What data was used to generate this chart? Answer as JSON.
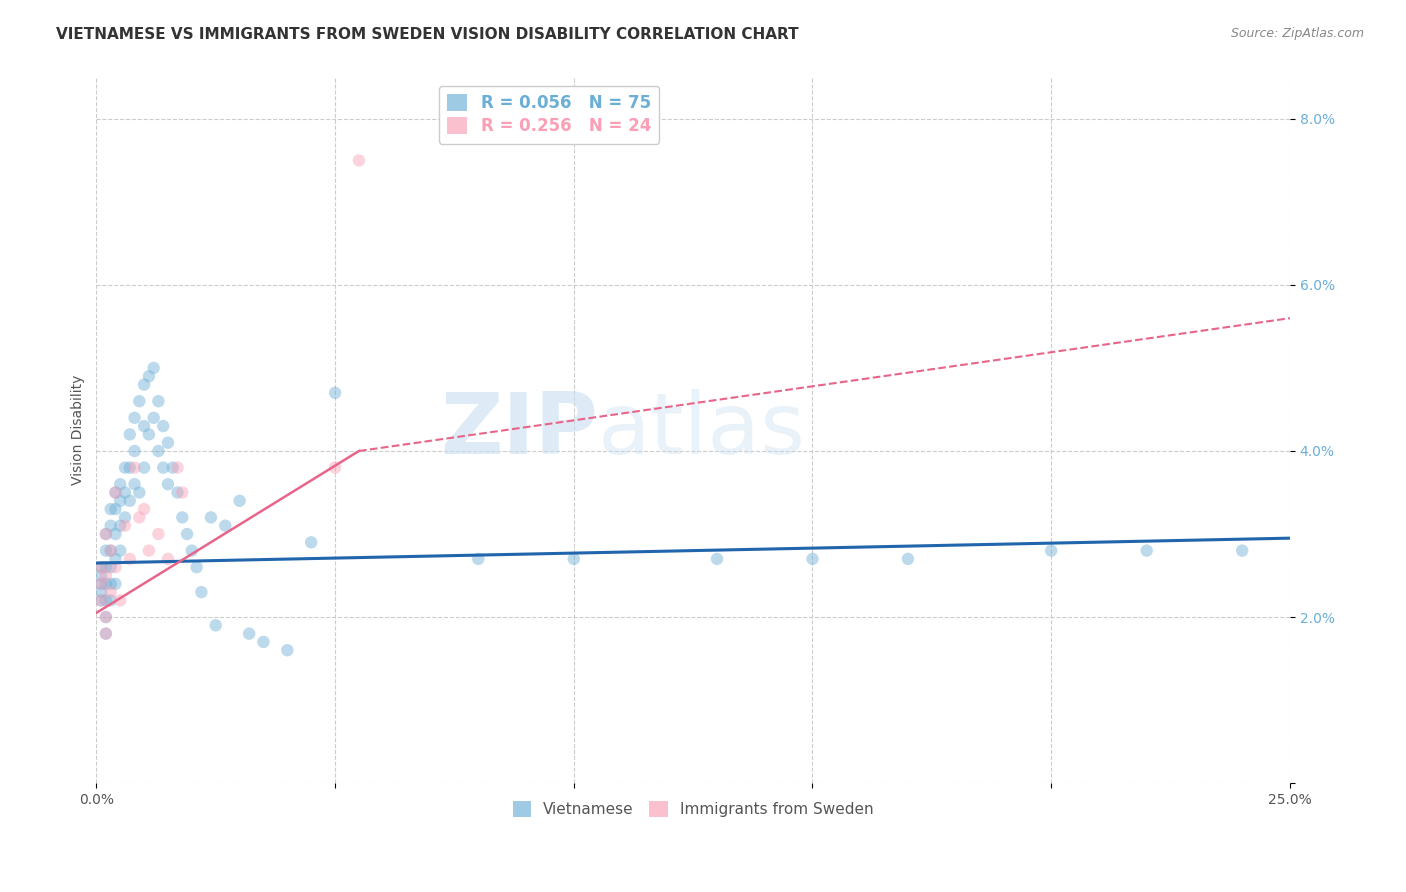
{
  "title": "VIETNAMESE VS IMMIGRANTS FROM SWEDEN VISION DISABILITY CORRELATION CHART",
  "source": "Source: ZipAtlas.com",
  "ylabel": "Vision Disability",
  "xlabel": "",
  "xlim": [
    0.0,
    0.25
  ],
  "ylim": [
    0.0,
    0.085
  ],
  "xticks": [
    0.0,
    0.05,
    0.1,
    0.15,
    0.2,
    0.25
  ],
  "yticks": [
    0.0,
    0.02,
    0.04,
    0.06,
    0.08
  ],
  "ytick_labels": [
    "",
    "2.0%",
    "4.0%",
    "6.0%",
    "8.0%"
  ],
  "xtick_labels": [
    "0.0%",
    "",
    "",
    "",
    "",
    "25.0%"
  ],
  "watermark_part1": "ZIP",
  "watermark_part2": "atlas",
  "series": [
    {
      "name": "Vietnamese",
      "color": "#6baed6",
      "R": 0.056,
      "N": 75,
      "x": [
        0.001,
        0.001,
        0.001,
        0.001,
        0.001,
        0.002,
        0.002,
        0.002,
        0.002,
        0.002,
        0.002,
        0.002,
        0.003,
        0.003,
        0.003,
        0.003,
        0.003,
        0.003,
        0.004,
        0.004,
        0.004,
        0.004,
        0.004,
        0.005,
        0.005,
        0.005,
        0.005,
        0.006,
        0.006,
        0.006,
        0.007,
        0.007,
        0.007,
        0.008,
        0.008,
        0.008,
        0.009,
        0.009,
        0.01,
        0.01,
        0.01,
        0.011,
        0.011,
        0.012,
        0.012,
        0.013,
        0.013,
        0.014,
        0.014,
        0.015,
        0.015,
        0.016,
        0.017,
        0.018,
        0.019,
        0.02,
        0.021,
        0.022,
        0.024,
        0.025,
        0.027,
        0.03,
        0.032,
        0.035,
        0.04,
        0.045,
        0.05,
        0.08,
        0.1,
        0.13,
        0.15,
        0.17,
        0.2,
        0.22,
        0.24
      ],
      "y": [
        0.026,
        0.025,
        0.024,
        0.023,
        0.022,
        0.03,
        0.028,
        0.026,
        0.024,
        0.022,
        0.02,
        0.018,
        0.033,
        0.031,
        0.028,
        0.026,
        0.024,
        0.022,
        0.035,
        0.033,
        0.03,
        0.027,
        0.024,
        0.036,
        0.034,
        0.031,
        0.028,
        0.038,
        0.035,
        0.032,
        0.042,
        0.038,
        0.034,
        0.044,
        0.04,
        0.036,
        0.046,
        0.035,
        0.048,
        0.043,
        0.038,
        0.049,
        0.042,
        0.05,
        0.044,
        0.046,
        0.04,
        0.043,
        0.038,
        0.041,
        0.036,
        0.038,
        0.035,
        0.032,
        0.03,
        0.028,
        0.026,
        0.023,
        0.032,
        0.019,
        0.031,
        0.034,
        0.018,
        0.017,
        0.016,
        0.029,
        0.047,
        0.027,
        0.027,
        0.027,
        0.027,
        0.027,
        0.028,
        0.028,
        0.028
      ]
    },
    {
      "name": "Immigrants from Sweden",
      "color": "#fa9fb5",
      "R": 0.256,
      "N": 24,
      "x": [
        0.001,
        0.001,
        0.001,
        0.002,
        0.002,
        0.002,
        0.003,
        0.003,
        0.004,
        0.004,
        0.005,
        0.006,
        0.007,
        0.008,
        0.009,
        0.01,
        0.011,
        0.013,
        0.015,
        0.017,
        0.018,
        0.05,
        0.055,
        0.002
      ],
      "y": [
        0.026,
        0.024,
        0.022,
        0.03,
        0.025,
        0.02,
        0.028,
        0.023,
        0.035,
        0.026,
        0.022,
        0.031,
        0.027,
        0.038,
        0.032,
        0.033,
        0.028,
        0.03,
        0.027,
        0.038,
        0.035,
        0.038,
        0.075,
        0.018
      ]
    }
  ],
  "trend_blue": {
    "color": "#2166ac",
    "x_start": 0.0,
    "x_end": 0.25,
    "y_start": 0.0265,
    "y_end": 0.0295,
    "linestyle": "solid",
    "linewidth": 2.2
  },
  "trend_pink_solid": {
    "color": "#e8658a",
    "x_start": 0.0,
    "x_end": 0.055,
    "y_start": 0.0205,
    "y_end": 0.04,
    "linestyle": "solid",
    "linewidth": 1.8
  },
  "trend_pink_dashed": {
    "color": "#e8658a",
    "x_start": 0.055,
    "x_end": 0.25,
    "y_start": 0.04,
    "y_end": 0.056,
    "linestyle": "dashed",
    "linewidth": 1.5
  },
  "legend_entries": [
    {
      "label_r": "R = 0.056",
      "label_n": "N = 75",
      "color": "#6baed6"
    },
    {
      "label_r": "R = 0.256",
      "label_n": "N = 24",
      "color": "#fa9fb5"
    }
  ],
  "bottom_legend": [
    {
      "name": "Vietnamese",
      "color": "#6baed6"
    },
    {
      "name": "Immigrants from Sweden",
      "color": "#fa9fb5"
    }
  ],
  "background_color": "#ffffff",
  "grid_color": "#cccccc",
  "title_fontsize": 11,
  "axis_label_fontsize": 10,
  "tick_fontsize": 10,
  "marker_size": 80,
  "marker_alpha": 0.45
}
